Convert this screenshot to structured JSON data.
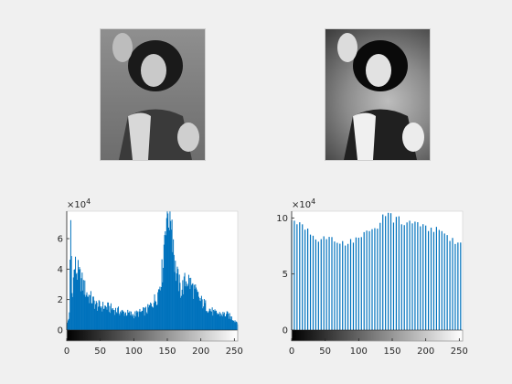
{
  "photos": [
    {
      "id": "original",
      "stamp": ""
    },
    {
      "id": "equalized",
      "stamp": ""
    }
  ],
  "colors": {
    "bar": "#0072BD",
    "axes_bg": "#ffffff",
    "axis": "#262626",
    "figure_bg": "#f0f0f0"
  },
  "chart_data": [
    {
      "type": "bar",
      "title": "",
      "xlabel": "",
      "ylabel": "",
      "y_exponent_label": "×10",
      "y_exponent": "4",
      "xlim": [
        0,
        255
      ],
      "ylim": [
        0,
        7.8
      ],
      "x_ticks": [
        "0",
        "50",
        "100",
        "150",
        "200",
        "250"
      ],
      "y_ticks": [
        "0",
        "2",
        "4",
        "6"
      ],
      "grid": false,
      "colorbar": "grayscale",
      "profile": [
        [
          0,
          0.3
        ],
        [
          4,
          1.0
        ],
        [
          6,
          7.2
        ],
        [
          8,
          2.4
        ],
        [
          12,
          4.2
        ],
        [
          20,
          3.4
        ],
        [
          30,
          2.4
        ],
        [
          45,
          1.6
        ],
        [
          60,
          1.5
        ],
        [
          80,
          1.2
        ],
        [
          100,
          1.0
        ],
        [
          120,
          1.3
        ],
        [
          135,
          2.2
        ],
        [
          143,
          4.0
        ],
        [
          148,
          7.8
        ],
        [
          156,
          7.8
        ],
        [
          162,
          4.0
        ],
        [
          170,
          2.6
        ],
        [
          180,
          3.4
        ],
        [
          190,
          2.6
        ],
        [
          200,
          1.9
        ],
        [
          220,
          1.1
        ],
        [
          240,
          1.0
        ],
        [
          255,
          0.5
        ]
      ]
    },
    {
      "type": "bar",
      "title": "",
      "xlabel": "",
      "ylabel": "",
      "y_exponent_label": "×10",
      "y_exponent": "4",
      "xlim": [
        0,
        255
      ],
      "ylim": [
        0,
        10.6
      ],
      "x_ticks": [
        "0",
        "50",
        "100",
        "150",
        "200",
        "250"
      ],
      "y_ticks": [
        "0",
        "5",
        "10"
      ],
      "grid": false,
      "colorbar": "grayscale",
      "bar_count": 64,
      "profile": [
        [
          0,
          10.2
        ],
        [
          20,
          9.6
        ],
        [
          40,
          8.5
        ],
        [
          60,
          8.3
        ],
        [
          80,
          8.1
        ],
        [
          100,
          8.4
        ],
        [
          120,
          9.3
        ],
        [
          140,
          10.6
        ],
        [
          160,
          10.2
        ],
        [
          180,
          9.9
        ],
        [
          200,
          9.6
        ],
        [
          220,
          9.3
        ],
        [
          240,
          8.4
        ],
        [
          255,
          8.0
        ]
      ]
    }
  ]
}
